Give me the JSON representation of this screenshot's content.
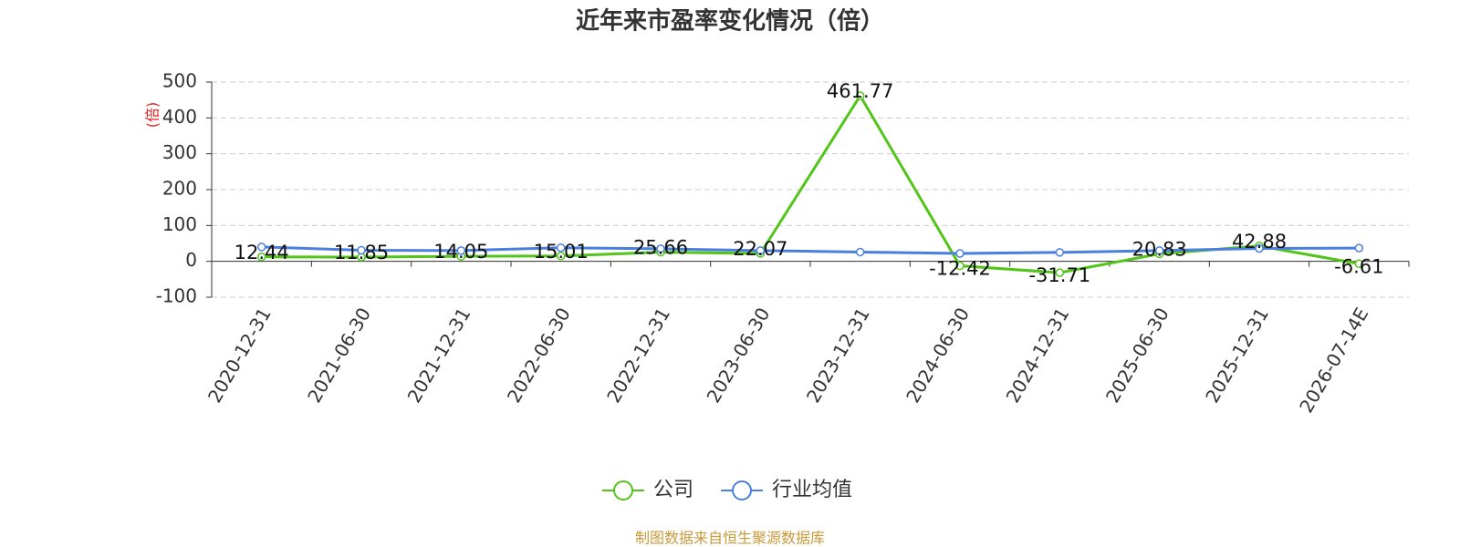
{
  "chart_data": {
    "type": "line",
    "title": "近年来市盈率变化情况（倍）",
    "y_label": "(倍)",
    "source": "制图数据来自恒生聚源数据库",
    "categories": [
      "2020-12-31",
      "2021-06-30",
      "2021-12-31",
      "2022-06-30",
      "2022-12-31",
      "2023-06-30",
      "2023-12-31",
      "2024-06-30",
      "2024-12-31",
      "2025-06-30",
      "2025-12-31",
      "2026-07-14E"
    ],
    "series": [
      {
        "name": "公司",
        "color": "#52c41a",
        "labels": true,
        "values": [
          12.44,
          11.85,
          14.05,
          15.01,
          25.66,
          22.07,
          461.77,
          -12.42,
          -31.71,
          20.83,
          42.88,
          -6.61
        ]
      },
      {
        "name": "行业均值",
        "color": "#4a7fe0",
        "labels": false,
        "values": [
          40,
          31,
          30,
          38,
          35,
          30,
          26,
          22,
          25,
          30,
          36,
          37
        ]
      }
    ],
    "ylim": [
      -100,
      500
    ],
    "yticks": [
      -100,
      0,
      100,
      200,
      300,
      400,
      500
    ],
    "grid": true
  }
}
